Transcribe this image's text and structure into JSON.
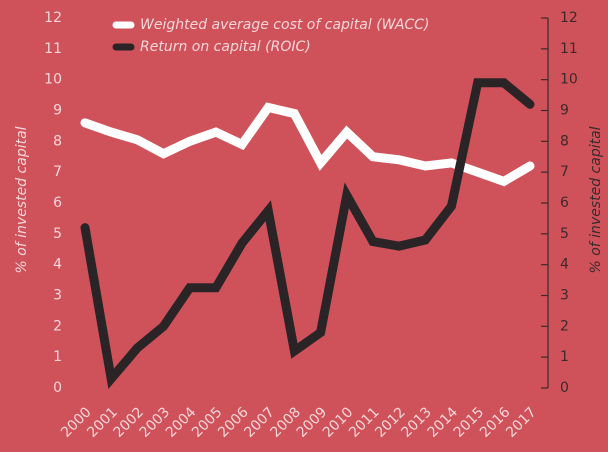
{
  "chart_data": {
    "type": "line",
    "y_label": "% of invested capital",
    "y2_label": "% of invested capital",
    "categories": [
      "2000",
      "2001",
      "2002",
      "2003",
      "2004",
      "2005",
      "2006",
      "2007",
      "2008",
      "2009",
      "2010",
      "2011",
      "2012",
      "2013",
      "2014",
      "2015",
      "2016",
      "2017"
    ],
    "series": [
      {
        "name": "Weighted average cost of capital (WACC)",
        "color": "#ffffff",
        "values": [
          8.6,
          8.3,
          8.05,
          7.6,
          8.0,
          8.3,
          7.9,
          9.1,
          8.9,
          7.3,
          8.3,
          7.5,
          7.4,
          7.2,
          7.3,
          7.0,
          6.7,
          7.2
        ]
      },
      {
        "name": "Return on capital (ROIC)",
        "color": "#2b2426",
        "values": [
          5.2,
          0.3,
          1.3,
          2.0,
          3.25,
          3.25,
          4.7,
          5.75,
          1.2,
          1.8,
          6.25,
          4.75,
          4.6,
          4.8,
          5.9,
          9.9,
          9.9,
          9.2
        ]
      }
    ],
    "ylim": [
      0,
      12
    ],
    "yticks": [
      0,
      1,
      2,
      3,
      4,
      5,
      6,
      7,
      8,
      9,
      10,
      11,
      12
    ],
    "y2lim": [
      0,
      12
    ],
    "y2ticks": [
      0,
      1,
      2,
      3,
      4,
      5,
      6,
      7,
      8,
      9,
      10,
      11,
      12
    ],
    "legend": "top-left"
  }
}
